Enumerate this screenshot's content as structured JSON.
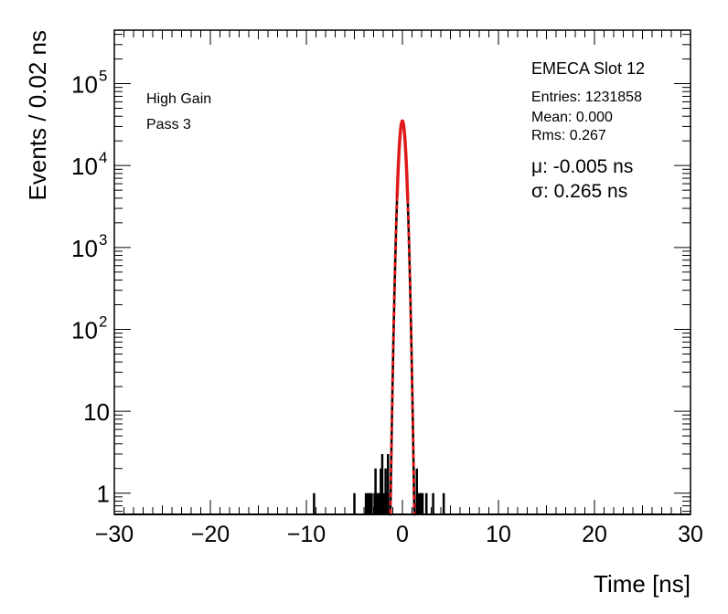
{
  "chart_data": {
    "type": "histogram",
    "title": "EMECA Slot 12",
    "xlabel": "Time [ns]",
    "ylabel": "Events / 0.02 ns",
    "xlim": [
      -30,
      30
    ],
    "ylim": [
      0.55,
      450000
    ],
    "yscale": "log",
    "grid": false,
    "legend": "none",
    "x_ticks": [
      {
        "value": -30,
        "label": "−30"
      },
      {
        "value": -20,
        "label": "−20"
      },
      {
        "value": -10,
        "label": "−10"
      },
      {
        "value": 0,
        "label": "0"
      },
      {
        "value": 10,
        "label": "10"
      },
      {
        "value": 20,
        "label": "20"
      },
      {
        "value": 30,
        "label": "30"
      }
    ],
    "y_ticks": [
      {
        "value": 1,
        "base": "1",
        "exp": ""
      },
      {
        "value": 10,
        "base": "10",
        "exp": ""
      },
      {
        "value": 100,
        "base": "10",
        "exp": "2"
      },
      {
        "value": 1000,
        "base": "10",
        "exp": "3"
      },
      {
        "value": 10000,
        "base": "10",
        "exp": "4"
      },
      {
        "value": 100000,
        "base": "10",
        "exp": "5"
      }
    ],
    "annotations": {
      "gain": "High Gain",
      "pass": "Pass 3",
      "entries": "Entries: 1231858",
      "mean": "Mean: 0.000",
      "rms": "Rms: 0.267",
      "mu": "μ: -0.005 ns",
      "sigma": "σ: 0.265 ns"
    },
    "histogram": {
      "color": "#000000",
      "core_center": -0.005,
      "core_sigma": 0.265,
      "core_peak": 35000,
      "outliers": [
        {
          "x": -9.2,
          "y": 1
        },
        {
          "x": -5.0,
          "y": 1
        },
        {
          "x": -3.8,
          "y": 1
        },
        {
          "x": -3.6,
          "y": 1
        },
        {
          "x": -3.4,
          "y": 1
        },
        {
          "x": -3.2,
          "y": 1
        },
        {
          "x": -2.9,
          "y": 1
        },
        {
          "x": -2.8,
          "y": 2
        },
        {
          "x": -2.6,
          "y": 1
        },
        {
          "x": -2.4,
          "y": 1
        },
        {
          "x": -2.25,
          "y": 2
        },
        {
          "x": -2.1,
          "y": 3
        },
        {
          "x": -1.9,
          "y": 1
        },
        {
          "x": -1.75,
          "y": 2
        },
        {
          "x": -1.6,
          "y": 1
        },
        {
          "x": -1.5,
          "y": 3
        },
        {
          "x": 1.5,
          "y": 2
        },
        {
          "x": 1.6,
          "y": 1
        },
        {
          "x": 1.75,
          "y": 1
        },
        {
          "x": 1.9,
          "y": 1
        },
        {
          "x": 2.1,
          "y": 1
        },
        {
          "x": 2.5,
          "y": 1
        },
        {
          "x": 3.2,
          "y": 1
        },
        {
          "x": 4.3,
          "y": 1
        }
      ]
    },
    "fit": {
      "function": "gaussian",
      "color": "#e0191b",
      "mu": -0.005,
      "sigma": 0.265,
      "amplitude": 35000,
      "fit_range": [
        -0.55,
        0.55
      ]
    }
  }
}
